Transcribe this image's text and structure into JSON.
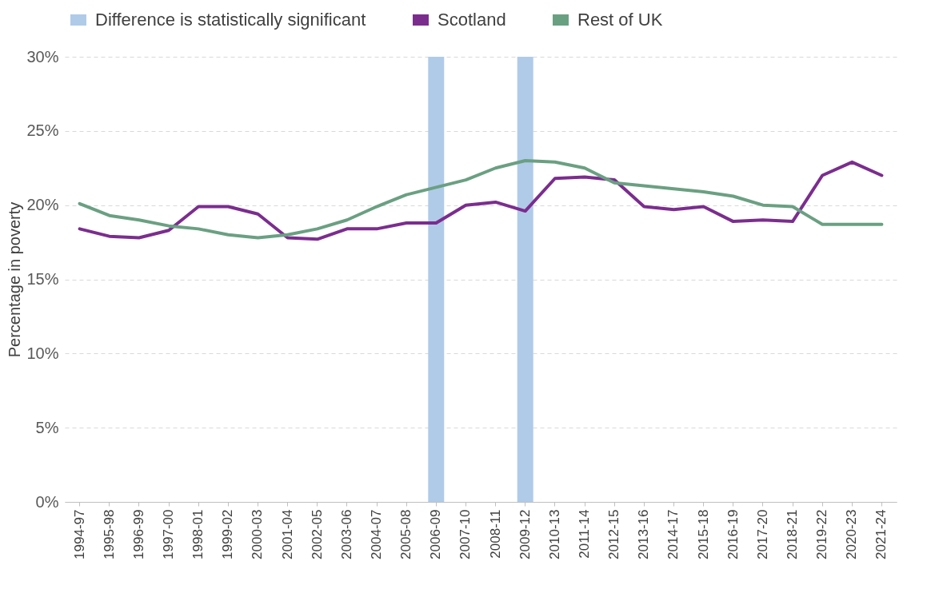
{
  "chart_data": {
    "type": "line",
    "ylabel": "Percentage in poverty",
    "categories": [
      "1994-97",
      "1995-98",
      "1996-99",
      "1997-00",
      "1998-01",
      "1999-02",
      "2000-03",
      "2001-04",
      "2002-05",
      "2003-06",
      "2004-07",
      "2005-08",
      "2006-09",
      "2007-10",
      "2008-11",
      "2009-12",
      "2010-13",
      "2011-14",
      "2012-15",
      "2013-16",
      "2014-17",
      "2015-18",
      "2016-19",
      "2017-20",
      "2018-21",
      "2019-22",
      "2020-23",
      "2021-24"
    ],
    "series": [
      {
        "name": "Difference is statistically significant",
        "type": "bar",
        "color": "#b0cbe8",
        "values": [
          null,
          null,
          null,
          null,
          null,
          null,
          null,
          null,
          null,
          null,
          null,
          null,
          30,
          null,
          null,
          30,
          null,
          null,
          null,
          null,
          null,
          null,
          null,
          null,
          null,
          null,
          null,
          null
        ]
      },
      {
        "name": "Scotland",
        "color": "#7b2d8e",
        "values": [
          18.4,
          17.9,
          17.8,
          18.3,
          19.9,
          19.9,
          19.4,
          17.8,
          17.7,
          18.4,
          18.4,
          18.8,
          18.8,
          20.0,
          20.2,
          19.6,
          21.8,
          21.9,
          21.7,
          19.9,
          19.7,
          19.9,
          18.9,
          19.0,
          18.9,
          22.0,
          22.9,
          22.0
        ]
      },
      {
        "name": "Rest of UK",
        "color": "#6aa082",
        "values": [
          20.1,
          19.3,
          19.0,
          18.6,
          18.4,
          18.0,
          17.8,
          18.0,
          18.4,
          19.0,
          19.9,
          20.7,
          21.2,
          21.7,
          22.5,
          23.0,
          22.9,
          22.5,
          21.5,
          21.3,
          21.1,
          20.9,
          20.6,
          20.0,
          19.9,
          18.7,
          18.7,
          18.7
        ]
      }
    ],
    "ylim": [
      0,
      30
    ],
    "yticks": [
      {
        "value": 0,
        "label": "0%"
      },
      {
        "value": 5,
        "label": "5%"
      },
      {
        "value": 10,
        "label": "10%"
      },
      {
        "value": 15,
        "label": "15%"
      },
      {
        "value": 20,
        "label": "20%"
      },
      {
        "value": 25,
        "label": "25%"
      },
      {
        "value": 30,
        "label": "30%"
      }
    ],
    "grid": "y",
    "legend": "top",
    "marker": "none",
    "line_style": "solid"
  }
}
